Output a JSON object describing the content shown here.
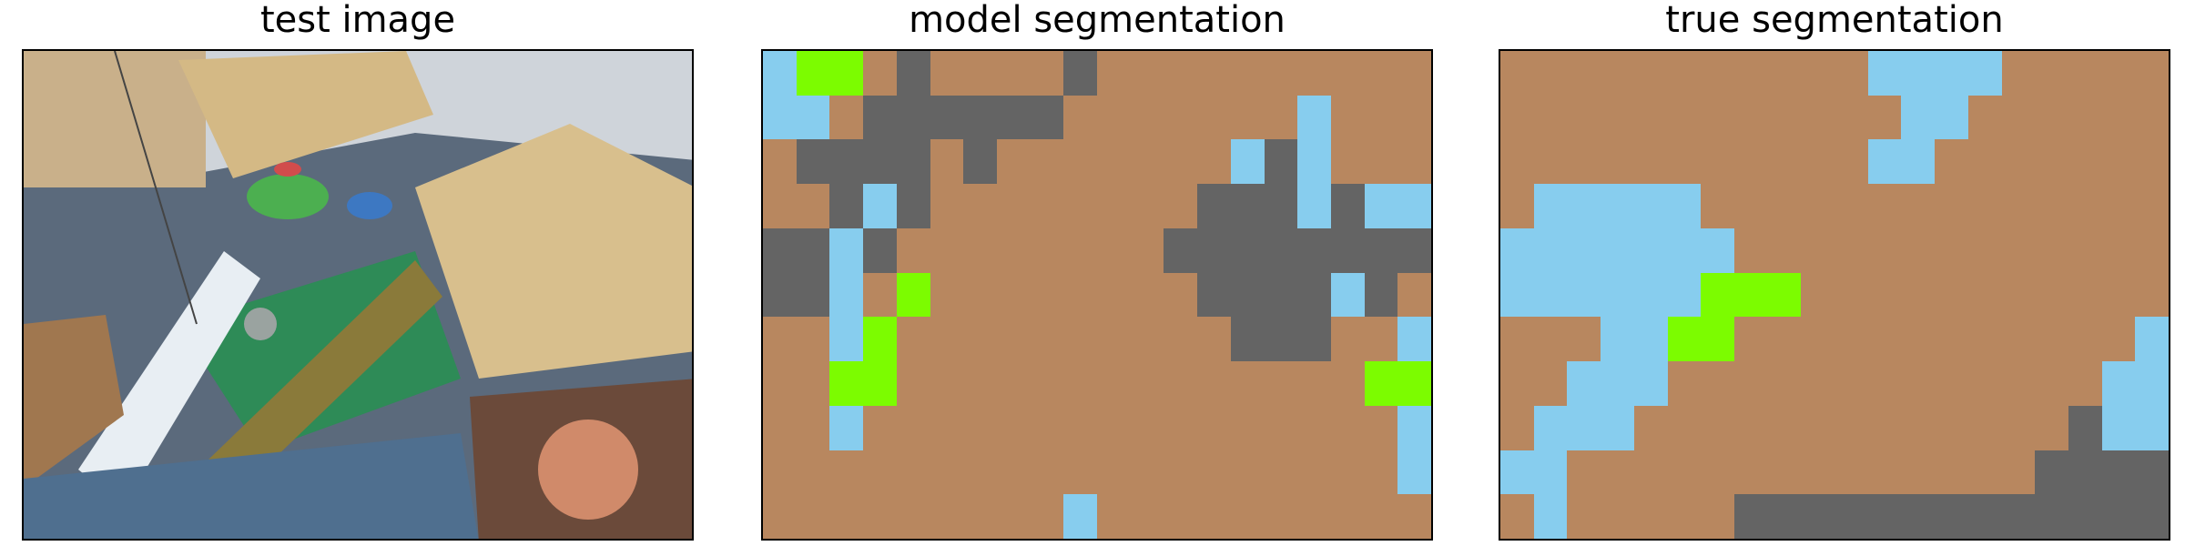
{
  "panels": [
    {
      "title": "test image"
    },
    {
      "title": "model segmentation"
    },
    {
      "title": "true segmentation"
    }
  ],
  "legend_colors": {
    "B": "#b8875f",
    "S": "#87cdee",
    "D": "#646464",
    "G": "#7cfc00"
  },
  "photo_colors": {
    "sky": "#d9dde3",
    "wood": "#c9a978",
    "board": "#d8bf8d",
    "carpet": "#2e8b57",
    "beam": "#8a7a3a",
    "foam": "#e8eef3",
    "blue": "#4f7fb8",
    "stones": "#6b4a3a",
    "dark": "#3a3a3a"
  },
  "model_grid": [
    "SGGBDBBBBDBBBBBBBBBB",
    "SSBDDDDDDBBBBBBBSBBB",
    "BDDDDBDBBBBBBBSDSBBB",
    "BBDSDBBBBBBBBDDDSDSS",
    "DDSDBBBBBBBBDDDDDDDD",
    "DDSBGBBBBBBBBDDDDSDB",
    "BBSGBBBBBBBBBBDDDBBS",
    "BBGGBBBBBBBBBBBBBBGG",
    "BBSBBBBBBBBBBBBBBBBS",
    "BBBBBBBBBBBBBBBBBBBS",
    "BBBBBBBBBSBBBBBBBBBB"
  ],
  "true_grid": [
    "BBBBBBBBBBBSSSSBBBBB",
    "BBBBBBBBBBBBSSBBBBBB",
    "BBBBBBBBBBBSSBBBBBBB",
    "BSSSSSBBBBBBBBBBBBBB",
    "SSSSSSSBBBBBBBBBBBBB",
    "SSSSSSGGGBBBBBBBBBBB",
    "BBBSSGGBBBBBBBBBBBBS",
    "BBSSSBBBBBBBBBBBBBSS",
    "BSSSBBBBBBBBBBBBBDSS",
    "SSBBBBBBBBBBBBBBDDDD",
    "BSBBBBBDDDDDDDDDDDDD"
  ]
}
